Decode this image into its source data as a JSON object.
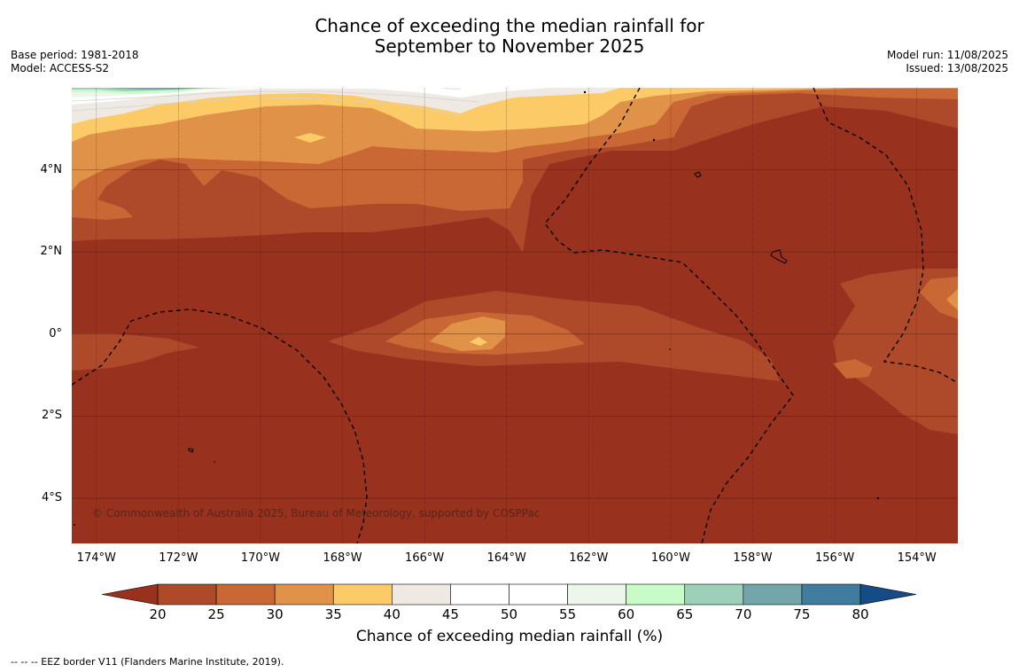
{
  "title_line1": "Chance of exceeding the median rainfall for",
  "title_line2": "September to November 2025",
  "base_period": "Base period: 1981-2018",
  "model": "Model: ACCESS-S2",
  "model_run": "Model run: 11/08/2025",
  "issued": "Issued: 13/08/2025",
  "copyright": "© Commonwealth of Australia 2025, Bureau of Meteorology, supported by COSPPac",
  "colorbar_label": "Chance of exceeding median rainfall (%)",
  "footnote": "--  --  -- EEZ border V11 (Flanders Marine Institute, 2019).",
  "map": {
    "lon_range": [
      -174.6,
      -153.0
    ],
    "lat_range": [
      -5.1,
      6.0
    ],
    "lat_ticks": [
      {
        "lat": 4,
        "label": "4°N"
      },
      {
        "lat": 2,
        "label": "2°N"
      },
      {
        "lat": 0,
        "label": "0°"
      },
      {
        "lat": -2,
        "label": "2°S"
      },
      {
        "lat": -4,
        "label": "4°S"
      }
    ],
    "lon_ticks": [
      {
        "lon": -174,
        "label": "174°W"
      },
      {
        "lon": -172,
        "label": "172°W"
      },
      {
        "lon": -170,
        "label": "170°W"
      },
      {
        "lon": -168,
        "label": "168°W"
      },
      {
        "lon": -166,
        "label": "166°W"
      },
      {
        "lon": -164,
        "label": "164°W"
      },
      {
        "lon": -162,
        "label": "162°W"
      },
      {
        "lon": -160,
        "label": "160°W"
      },
      {
        "lon": -158,
        "label": "158°W"
      },
      {
        "lon": -156,
        "label": "156°W"
      },
      {
        "lon": -154,
        "label": "154°W"
      }
    ]
  },
  "colorbar": {
    "ticks": [
      "20",
      "25",
      "30",
      "35",
      "40",
      "45",
      "50",
      "55",
      "60",
      "65",
      "70",
      "75",
      "80"
    ],
    "colors": [
      "#98321f",
      "#ae4a2a",
      "#c96834",
      "#e09348",
      "#fdca68",
      "#efe9e3",
      "#ffffff",
      "#ffffff",
      "#ecf6ea",
      "#c8fbc8",
      "#9dd0b8",
      "#72a6a9",
      "#3f7c9e",
      "#154c86"
    ],
    "under_color": "#98321f",
    "over_color": "#154c86"
  }
}
